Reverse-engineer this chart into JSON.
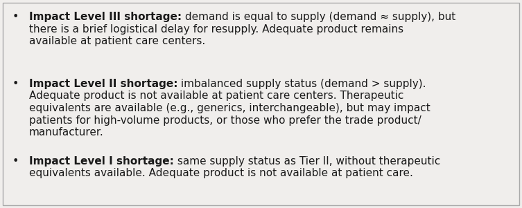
{
  "background_color": "#f0eeec",
  "border_color": "#aaaaaa",
  "text_color": "#1a1a1a",
  "bullet_color": "#1a1a1a",
  "font_size": 11.0,
  "bullet_lines": [
    {
      "bold": "Impact Level III shortage:",
      "lines": [
        " demand is equal to supply (demand ≈ supply), but",
        "there is a brief logistical delay for resupply. Adequate product remains",
        "available at patient care centers."
      ]
    },
    {
      "bold": "Impact Level II shortage:",
      "lines": [
        " imbalanced supply status (demand > supply).",
        "Adequate product is not available at patient care centers. Therapeutic",
        "equivalents are available (e.g., generics, interchangeable), but may impact",
        "patients for high-volume products, or those who prefer the trade product/",
        "manufacturer."
      ]
    },
    {
      "bold": "Impact Level I shortage:",
      "lines": [
        " same supply status as Tier II, without therapeutic",
        "equivalents available. Adequate product is not available at patient care."
      ]
    }
  ]
}
